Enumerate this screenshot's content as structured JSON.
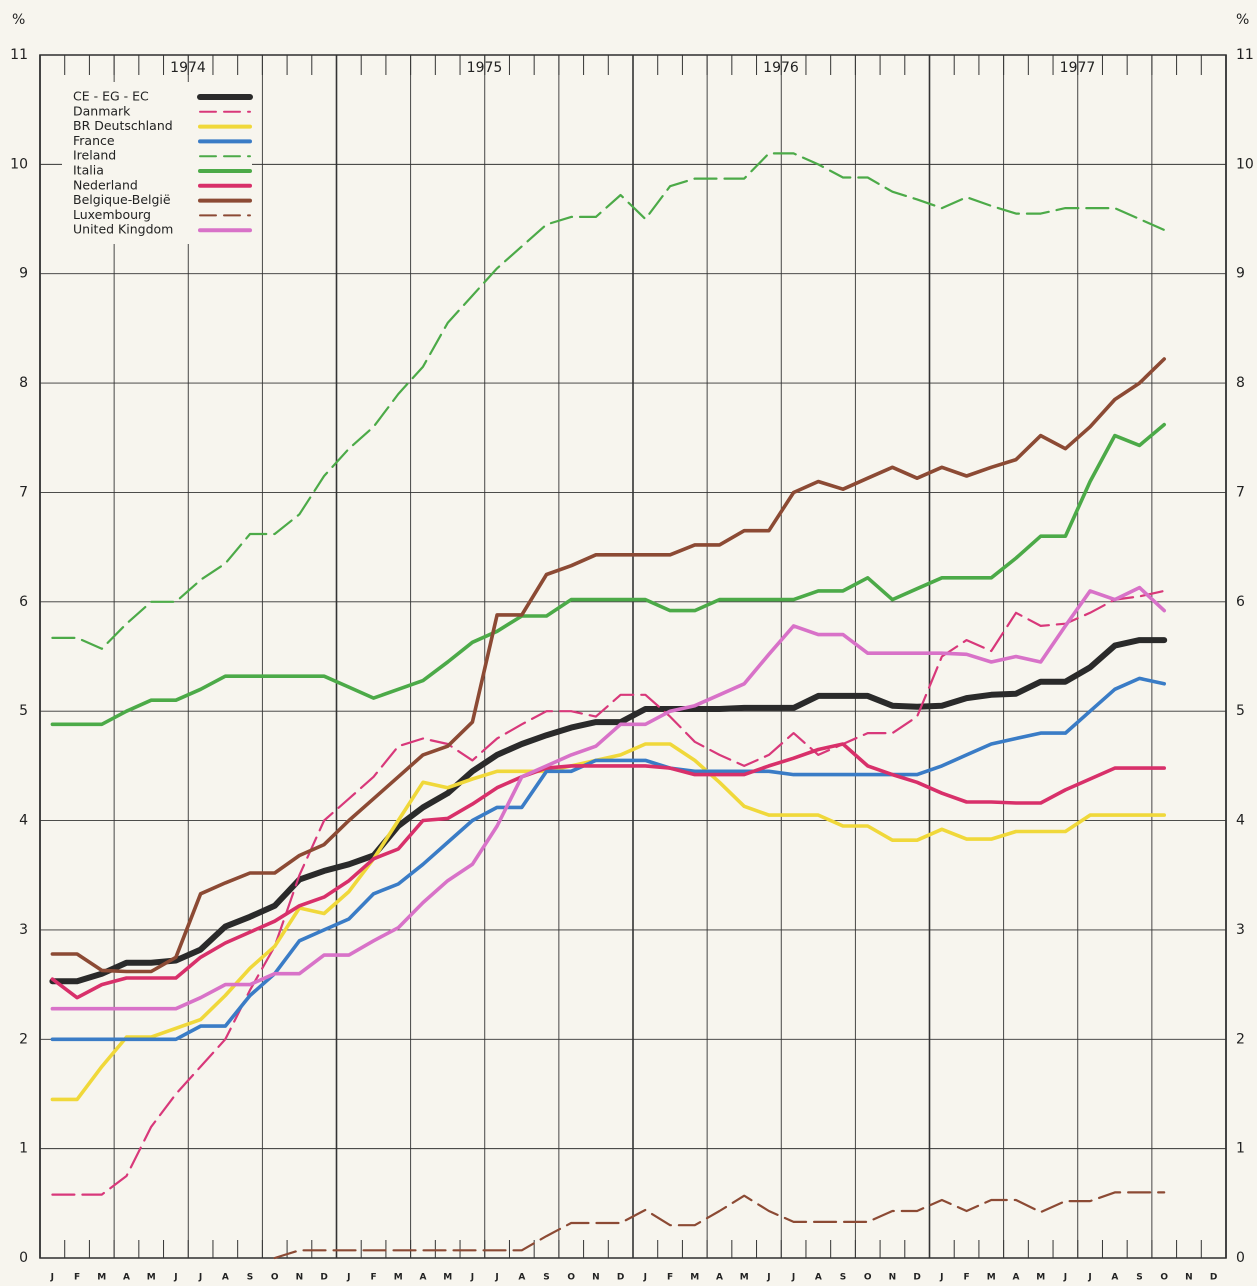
{
  "chart_data": {
    "type": "line",
    "y_axis_label": "%",
    "years": [
      "1974",
      "1975",
      "1976",
      "1977"
    ],
    "categories": [
      "J",
      "F",
      "M",
      "A",
      "M",
      "J",
      "J",
      "A",
      "S",
      "O",
      "N",
      "D",
      "J",
      "F",
      "M",
      "A",
      "M",
      "J",
      "J",
      "A",
      "S",
      "O",
      "N",
      "D",
      "J",
      "F",
      "M",
      "A",
      "M",
      "J",
      "J",
      "A",
      "S",
      "O",
      "N",
      "D",
      "J",
      "F",
      "M",
      "A",
      "M",
      "J",
      "J",
      "A",
      "S",
      "O",
      "N",
      "D"
    ],
    "ylim": [
      0,
      11
    ],
    "yticks": [
      0,
      1,
      2,
      3,
      4,
      5,
      6,
      7,
      8,
      9,
      10,
      11
    ],
    "grid": true,
    "legend": "upper left",
    "series": [
      {
        "name": "CE - EG - EC",
        "color": "#2a2a2a",
        "dashed": false,
        "values": [
          2.53,
          2.53,
          2.6,
          2.7,
          2.7,
          2.72,
          2.82,
          3.03,
          3.12,
          3.22,
          3.46,
          3.54,
          3.6,
          3.68,
          3.95,
          4.12,
          4.25,
          4.45,
          4.6,
          4.7,
          4.78,
          4.85,
          4.9,
          4.9,
          5.02,
          5.02,
          5.02,
          5.02,
          5.03,
          5.03,
          5.03,
          5.14,
          5.14,
          5.14,
          5.05,
          5.04,
          5.05,
          5.12,
          5.15,
          5.16,
          5.27,
          5.27,
          5.4,
          5.6,
          5.65,
          5.65,
          null,
          null
        ]
      },
      {
        "name": "Danmark",
        "color": "#d8387a",
        "dashed": true,
        "values": [
          0.58,
          0.58,
          0.58,
          0.75,
          1.2,
          1.5,
          1.75,
          2.0,
          2.45,
          2.85,
          3.5,
          4.0,
          4.2,
          4.4,
          4.68,
          4.75,
          4.7,
          4.55,
          4.75,
          4.88,
          5.0,
          5.0,
          4.95,
          5.15,
          5.15,
          4.95,
          4.72,
          4.6,
          4.5,
          4.6,
          4.8,
          4.6,
          4.7,
          4.8,
          4.8,
          4.95,
          5.5,
          5.65,
          5.55,
          5.9,
          5.78,
          5.8,
          5.9,
          6.02,
          6.05,
          6.1,
          null,
          null
        ]
      },
      {
        "name": "BR Deutschland",
        "color": "#f0d83a",
        "dashed": false,
        "values": [
          1.45,
          1.45,
          1.75,
          2.02,
          2.02,
          2.1,
          2.18,
          2.4,
          2.65,
          2.85,
          3.2,
          3.15,
          3.35,
          3.65,
          4.0,
          4.35,
          4.3,
          4.38,
          4.45,
          4.45,
          4.45,
          4.5,
          4.55,
          4.6,
          4.7,
          4.7,
          4.55,
          4.35,
          4.13,
          4.05,
          4.05,
          4.05,
          3.95,
          3.95,
          3.82,
          3.82,
          3.92,
          3.83,
          3.83,
          3.9,
          3.9,
          3.9,
          4.05,
          4.05,
          4.05,
          4.05,
          null,
          null
        ]
      },
      {
        "name": "France",
        "color": "#3a7cc6",
        "dashed": false,
        "values": [
          2.0,
          2.0,
          2.0,
          2.0,
          2.0,
          2.0,
          2.12,
          2.12,
          2.4,
          2.6,
          2.9,
          3.0,
          3.1,
          3.33,
          3.42,
          3.6,
          3.8,
          4.0,
          4.12,
          4.12,
          4.45,
          4.45,
          4.55,
          4.55,
          4.55,
          4.48,
          4.45,
          4.45,
          4.45,
          4.45,
          4.42,
          4.42,
          4.42,
          4.42,
          4.42,
          4.42,
          4.5,
          4.6,
          4.7,
          4.75,
          4.8,
          4.8,
          5.0,
          5.2,
          5.3,
          5.25,
          null,
          null
        ]
      },
      {
        "name": "Ireland",
        "color": "#4caa48",
        "dashed": true,
        "values": [
          5.67,
          5.67,
          5.57,
          5.8,
          6.0,
          6.0,
          6.2,
          6.35,
          6.62,
          6.62,
          6.8,
          7.15,
          7.4,
          7.6,
          7.9,
          8.15,
          8.55,
          8.8,
          9.05,
          9.25,
          9.45,
          9.52,
          9.52,
          9.72,
          9.5,
          9.8,
          9.87,
          9.87,
          9.87,
          10.1,
          10.1,
          10.0,
          9.88,
          9.88,
          9.75,
          9.68,
          9.6,
          9.7,
          9.62,
          9.55,
          9.55,
          9.6,
          9.6,
          9.6,
          9.5,
          9.4,
          null,
          null
        ]
      },
      {
        "name": "Italia",
        "color": "#4caa48",
        "dashed": false,
        "values": [
          4.88,
          4.88,
          4.88,
          5.0,
          5.1,
          5.1,
          5.2,
          5.32,
          5.32,
          5.32,
          5.32,
          5.32,
          5.22,
          5.12,
          5.2,
          5.28,
          5.45,
          5.63,
          5.73,
          5.87,
          5.87,
          6.02,
          6.02,
          6.02,
          6.02,
          5.92,
          5.92,
          6.02,
          6.02,
          6.02,
          6.02,
          6.1,
          6.1,
          6.22,
          6.02,
          6.12,
          6.22,
          6.22,
          6.22,
          6.4,
          6.6,
          6.6,
          7.1,
          7.52,
          7.43,
          7.62,
          null,
          null
        ]
      },
      {
        "name": "Nederland",
        "color": "#d8306a",
        "dashed": false,
        "values": [
          2.55,
          2.38,
          2.5,
          2.56,
          2.56,
          2.56,
          2.75,
          2.88,
          2.98,
          3.08,
          3.22,
          3.3,
          3.45,
          3.65,
          3.74,
          4.0,
          4.02,
          4.15,
          4.3,
          4.4,
          4.48,
          4.5,
          4.5,
          4.5,
          4.5,
          4.48,
          4.42,
          4.42,
          4.42,
          4.5,
          4.57,
          4.65,
          4.7,
          4.5,
          4.42,
          4.35,
          4.25,
          4.17,
          4.17,
          4.16,
          4.16,
          4.28,
          4.38,
          4.48,
          4.48,
          4.48,
          null,
          null
        ]
      },
      {
        "name": "Belgique-België",
        "color": "#8c4a34",
        "dashed": false,
        "values": [
          2.78,
          2.78,
          2.63,
          2.62,
          2.62,
          2.75,
          3.33,
          3.43,
          3.52,
          3.52,
          3.68,
          3.78,
          4.0,
          4.2,
          4.4,
          4.6,
          4.68,
          4.9,
          5.88,
          5.88,
          6.25,
          6.33,
          6.43,
          6.43,
          6.43,
          6.43,
          6.52,
          6.52,
          6.65,
          6.65,
          7.0,
          7.1,
          7.03,
          7.13,
          7.23,
          7.13,
          7.23,
          7.15,
          7.23,
          7.3,
          7.52,
          7.4,
          7.6,
          7.85,
          8.0,
          8.22,
          null,
          null
        ]
      },
      {
        "name": "Luxembourg",
        "color": "#8c4a34",
        "dashed": true,
        "values": [
          null,
          null,
          null,
          null,
          null,
          null,
          null,
          null,
          null,
          0,
          0.07,
          0.07,
          0.07,
          0.07,
          0.07,
          0.07,
          0.07,
          0.07,
          0.07,
          0.07,
          0.2,
          0.32,
          0.32,
          0.32,
          0.44,
          0.3,
          0.3,
          0.43,
          0.57,
          0.43,
          0.33,
          0.33,
          0.33,
          0.33,
          0.43,
          0.43,
          0.53,
          0.43,
          0.53,
          0.53,
          0.42,
          0.52,
          0.52,
          0.6,
          0.6,
          0.6,
          null,
          null
        ]
      },
      {
        "name": "United Kingdom",
        "color": "#d872c8",
        "dashed": false,
        "values": [
          2.28,
          2.28,
          2.28,
          2.28,
          2.28,
          2.28,
          2.38,
          2.5,
          2.5,
          2.6,
          2.6,
          2.77,
          2.77,
          2.9,
          3.02,
          3.25,
          3.45,
          3.6,
          3.95,
          4.4,
          4.5,
          4.6,
          4.68,
          4.88,
          4.88,
          5.0,
          5.05,
          5.15,
          5.25,
          5.52,
          5.78,
          5.7,
          5.7,
          5.53,
          5.53,
          5.53,
          5.53,
          5.52,
          5.45,
          5.5,
          5.45,
          5.78,
          6.1,
          6.02,
          6.13,
          5.92,
          null,
          null
        ]
      }
    ]
  }
}
